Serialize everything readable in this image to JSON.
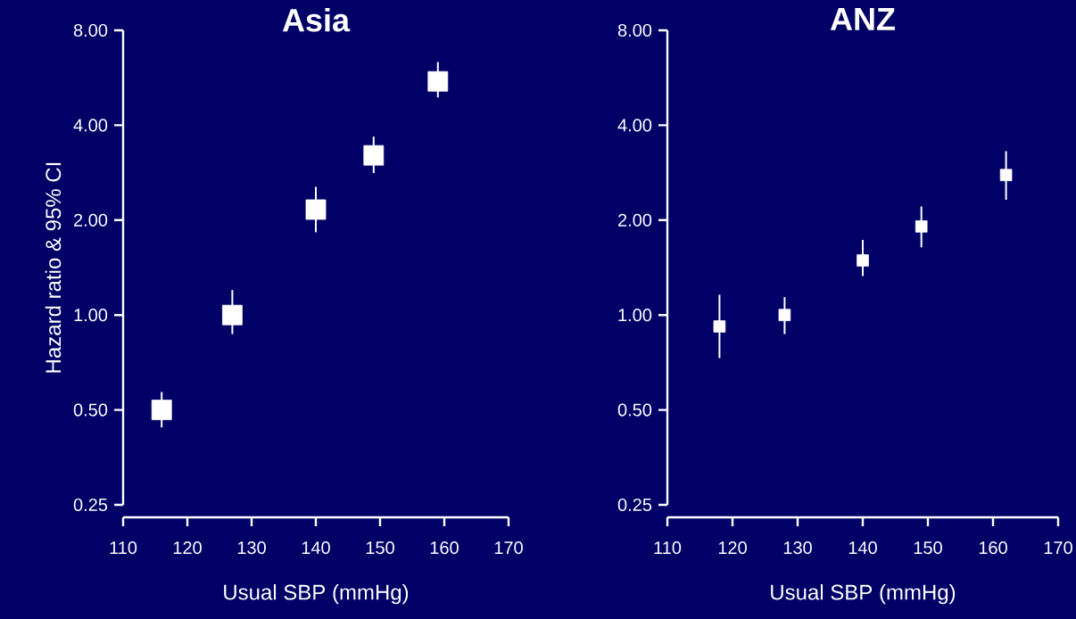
{
  "chart_data": [
    {
      "type": "scatter",
      "title": "Asia",
      "xlabel": "Usual SBP (mmHg)",
      "ylabel": "Hazard ratio & 95% CI",
      "log": "y",
      "marker": "square",
      "x": [
        116,
        127,
        140,
        149,
        159
      ],
      "values": [
        0.5,
        1.0,
        2.16,
        3.21,
        5.51
      ],
      "errors": [
        [
          0.44,
          0.57
        ],
        [
          0.87,
          1.2
        ],
        [
          1.83,
          2.55
        ],
        [
          2.82,
          3.68
        ],
        [
          4.9,
          6.35
        ]
      ],
      "color": "#ffffff",
      "xlim": [
        110,
        170
      ],
      "xticks": [
        110,
        120,
        130,
        140,
        150,
        160,
        170
      ],
      "ylim": [
        0.25,
        8
      ],
      "yticks": [
        {
          "value": 0.25,
          "label": "0.25"
        },
        {
          "value": 0.5,
          "label": "0.50"
        },
        {
          "value": 1,
          "label": "1.00"
        },
        {
          "value": 2,
          "label": "2.00"
        },
        {
          "value": 4,
          "label": "4.00"
        },
        {
          "value": 8,
          "label": "8.00"
        }
      ]
    },
    {
      "type": "scatter",
      "title": "ANZ",
      "xlabel": "Usual SBP (mmHg)",
      "log": "y",
      "marker": "square",
      "x": [
        118,
        128,
        140,
        149,
        162
      ],
      "values": [
        0.92,
        1.0,
        1.49,
        1.91,
        2.78
      ],
      "errors": [
        [
          0.73,
          1.16
        ],
        [
          0.87,
          1.14
        ],
        [
          1.33,
          1.73
        ],
        [
          1.64,
          2.21
        ],
        [
          2.32,
          3.31
        ]
      ],
      "color": "#ffffff",
      "xlim": [
        110,
        170
      ],
      "xticks": [
        110,
        120,
        130,
        140,
        150,
        160,
        170
      ],
      "ylim": [
        0.25,
        8
      ],
      "yticks": [
        {
          "value": 0.25,
          "label": "0.25"
        },
        {
          "value": 0.5,
          "label": "0.50"
        },
        {
          "value": 1,
          "label": "1.00"
        },
        {
          "value": 2,
          "label": "2.00"
        },
        {
          "value": 4,
          "label": "4.00"
        },
        {
          "value": 8,
          "label": "8.00"
        }
      ]
    }
  ]
}
